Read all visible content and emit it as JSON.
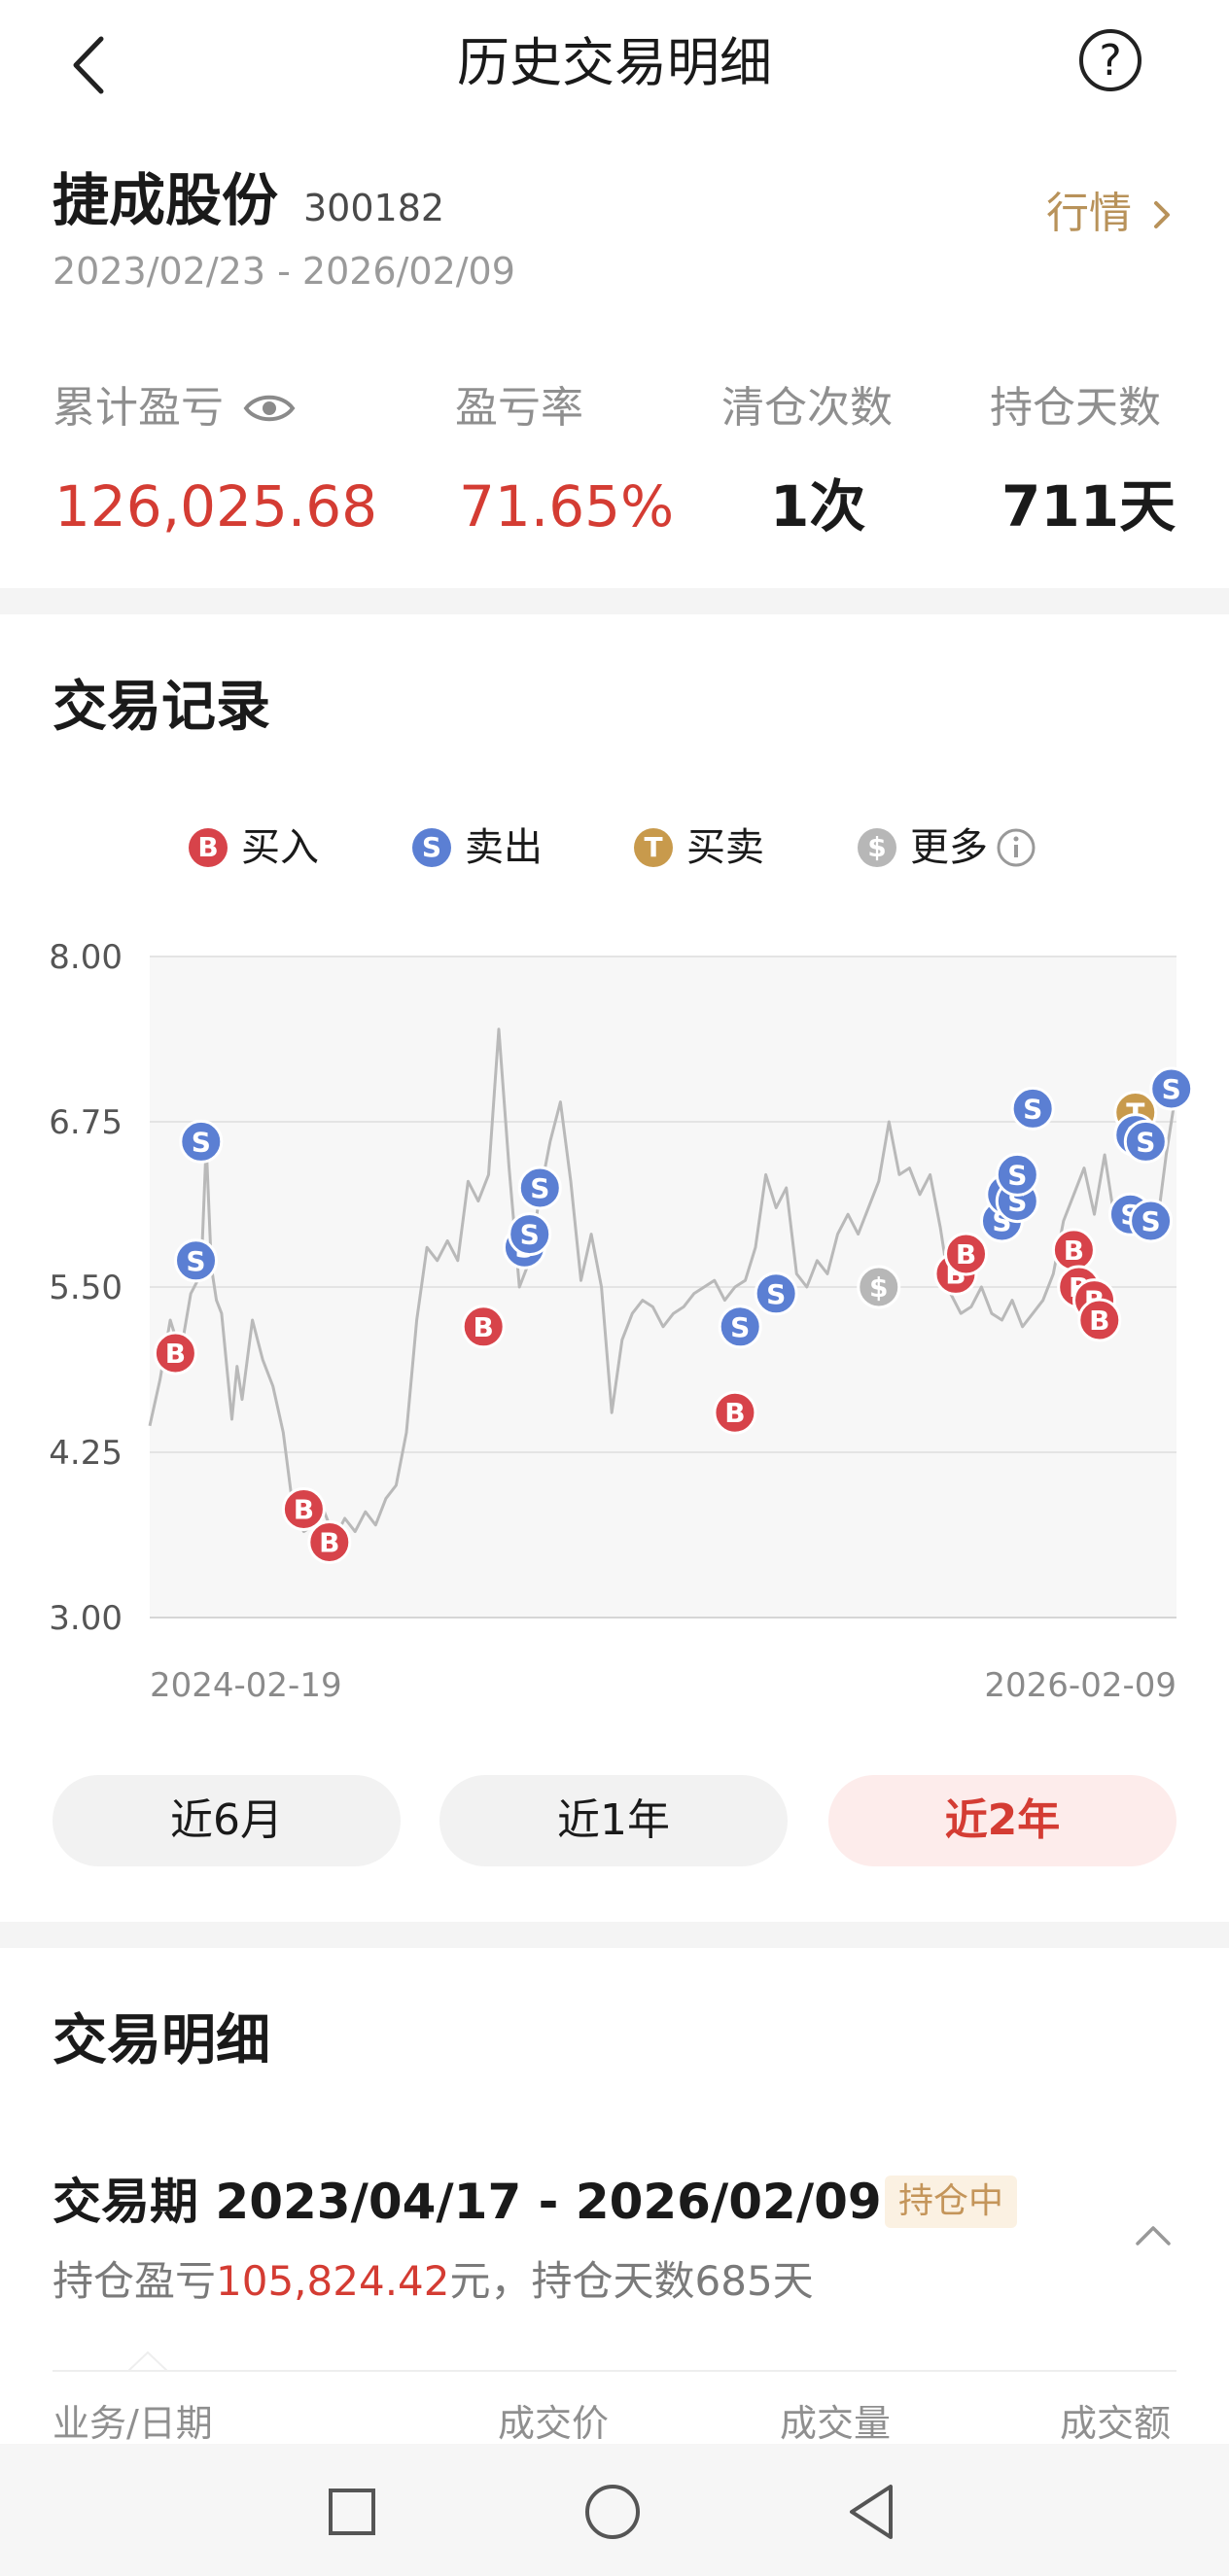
{
  "header": {
    "title": "历史交易明细",
    "help_glyph": "?",
    "back_icon": "chevron-left-icon"
  },
  "summary": {
    "name": "捷成股份",
    "code": "300182",
    "range": "2023/02/23 - 2026/02/09",
    "market_link": "行情",
    "stats": [
      {
        "label": "累计盈亏",
        "value": "126,025.68",
        "color": "#d43c33",
        "icon": "eye-icon"
      },
      {
        "label": "盈亏率",
        "value": "71.65%",
        "color": "#d43c33"
      },
      {
        "label": "清仓次数",
        "value": "1次",
        "color": "#1a1a1a"
      },
      {
        "label": "持仓天数",
        "value": "711天",
        "color": "#1a1a1a"
      }
    ]
  },
  "records": {
    "title": "交易记录",
    "legend": [
      {
        "letter": "B",
        "label": "买入",
        "color": "#d7434a"
      },
      {
        "letter": "S",
        "label": "卖出",
        "color": "#5b7fd3"
      },
      {
        "letter": "T",
        "label": "买卖",
        "color": "#c89a4c"
      },
      {
        "letter": "$",
        "label": "更多",
        "color": "#b7b7b7",
        "icon": "info-icon"
      }
    ],
    "periods": [
      {
        "label": "近6月",
        "active": false
      },
      {
        "label": "近1年",
        "active": false
      },
      {
        "label": "近2年",
        "active": true
      }
    ]
  },
  "chart_data": {
    "type": "line",
    "ylim": [
      3.0,
      8.0
    ],
    "y_ticks": [
      "8.00",
      "6.75",
      "5.50",
      "4.25",
      "3.00"
    ],
    "x_tick_labels": [
      "2024-02-19",
      "2026-02-09"
    ],
    "grid": true,
    "series": [
      {
        "x": [
          0.0,
          0.01,
          0.02,
          0.03,
          0.04,
          0.05,
          0.055,
          0.06,
          0.065,
          0.07,
          0.08,
          0.085,
          0.09,
          0.1,
          0.11,
          0.12,
          0.13,
          0.14,
          0.15,
          0.16,
          0.17,
          0.18,
          0.19,
          0.2,
          0.21,
          0.22,
          0.23,
          0.24,
          0.25,
          0.26,
          0.27,
          0.28,
          0.29,
          0.3,
          0.31,
          0.32,
          0.33,
          0.34,
          0.35,
          0.36,
          0.37,
          0.38,
          0.39,
          0.4,
          0.41,
          0.42,
          0.43,
          0.44,
          0.45,
          0.46,
          0.47,
          0.48,
          0.49,
          0.5,
          0.51,
          0.52,
          0.53,
          0.54,
          0.55,
          0.56,
          0.57,
          0.58,
          0.59,
          0.6,
          0.61,
          0.62,
          0.63,
          0.64,
          0.65,
          0.66,
          0.67,
          0.68,
          0.69,
          0.7,
          0.71,
          0.72,
          0.73,
          0.74,
          0.75,
          0.76,
          0.77,
          0.78,
          0.79,
          0.8,
          0.81,
          0.82,
          0.83,
          0.84,
          0.85,
          0.86,
          0.87,
          0.88,
          0.89,
          0.9,
          0.91,
          0.92,
          0.93,
          0.94,
          0.95,
          0.96,
          0.97,
          0.98,
          0.99,
          1.0
        ],
        "y": [
          4.45,
          4.8,
          5.25,
          5.0,
          5.45,
          5.6,
          6.58,
          5.65,
          5.4,
          5.3,
          4.5,
          4.9,
          4.65,
          5.25,
          4.95,
          4.75,
          4.4,
          3.8,
          3.65,
          3.7,
          3.8,
          3.6,
          3.75,
          3.65,
          3.8,
          3.7,
          3.9,
          4.0,
          4.4,
          5.25,
          5.8,
          5.7,
          5.85,
          5.7,
          6.3,
          6.15,
          6.35,
          7.45,
          6.4,
          5.5,
          5.7,
          6.2,
          6.6,
          6.9,
          6.3,
          5.55,
          5.9,
          5.5,
          4.55,
          5.1,
          5.3,
          5.4,
          5.35,
          5.2,
          5.3,
          5.35,
          5.45,
          5.5,
          5.55,
          5.4,
          5.5,
          5.55,
          5.8,
          6.35,
          6.1,
          6.25,
          5.6,
          5.5,
          5.7,
          5.6,
          5.9,
          6.05,
          5.9,
          6.1,
          6.3,
          6.75,
          6.35,
          6.4,
          6.2,
          6.35,
          5.95,
          5.45,
          5.3,
          5.35,
          5.5,
          5.3,
          5.25,
          5.4,
          5.2,
          5.3,
          5.4,
          5.6,
          6.0,
          6.2,
          6.4,
          6.05,
          6.5,
          6.0,
          6.05,
          6.2,
          6.0,
          5.9,
          6.5,
          7.0
        ]
      }
    ],
    "markers": [
      {
        "t": "B",
        "x": 0.025,
        "y": 5.0
      },
      {
        "t": "S",
        "x": 0.045,
        "y": 5.7
      },
      {
        "t": "S",
        "x": 0.05,
        "y": 6.6
      },
      {
        "t": "B",
        "x": 0.15,
        "y": 3.82
      },
      {
        "t": "B",
        "x": 0.175,
        "y": 3.57
      },
      {
        "t": "B",
        "x": 0.325,
        "y": 5.2
      },
      {
        "t": "S",
        "x": 0.365,
        "y": 5.8
      },
      {
        "t": "S",
        "x": 0.37,
        "y": 5.9
      },
      {
        "t": "S",
        "x": 0.38,
        "y": 6.25
      },
      {
        "t": "B",
        "x": 0.57,
        "y": 4.55
      },
      {
        "t": "S",
        "x": 0.575,
        "y": 5.2
      },
      {
        "t": "S",
        "x": 0.61,
        "y": 5.45
      },
      {
        "t": "$",
        "x": 0.71,
        "y": 5.5
      },
      {
        "t": "B",
        "x": 0.785,
        "y": 5.6
      },
      {
        "t": "B",
        "x": 0.795,
        "y": 5.75
      },
      {
        "t": "S",
        "x": 0.83,
        "y": 6.0
      },
      {
        "t": "S",
        "x": 0.835,
        "y": 6.2
      },
      {
        "t": "S",
        "x": 0.845,
        "y": 6.15
      },
      {
        "t": "S",
        "x": 0.845,
        "y": 6.35
      },
      {
        "t": "S",
        "x": 0.86,
        "y": 6.85
      },
      {
        "t": "B",
        "x": 0.9,
        "y": 5.78
      },
      {
        "t": "B",
        "x": 0.905,
        "y": 5.5
      },
      {
        "t": "B",
        "x": 0.92,
        "y": 5.4
      },
      {
        "t": "B",
        "x": 0.925,
        "y": 5.25
      },
      {
        "t": "T",
        "x": 0.96,
        "y": 6.82
      },
      {
        "t": "S",
        "x": 0.96,
        "y": 6.65
      },
      {
        "t": "S",
        "x": 0.97,
        "y": 6.6
      },
      {
        "t": "S",
        "x": 0.955,
        "y": 6.05
      },
      {
        "t": "S",
        "x": 0.975,
        "y": 6.0
      },
      {
        "t": "S",
        "x": 0.995,
        "y": 7.0
      }
    ]
  },
  "detail": {
    "title": "交易明细",
    "period_title": "交易期 2023/04/17 - 2026/02/09",
    "tag": "持仓中",
    "summary_prefix": "持仓盈亏",
    "summary_value": "105,824.42",
    "summary_suffix": "元，持仓天数685天",
    "columns": [
      "业务/日期",
      "成交价",
      "成交量",
      "成交额"
    ]
  },
  "nav": {
    "icons": [
      "square-icon",
      "circle-icon",
      "triangle-back-icon"
    ]
  }
}
